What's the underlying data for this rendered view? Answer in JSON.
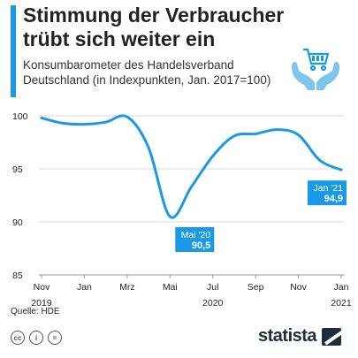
{
  "header": {
    "title": "Stimmung der Verbraucher trübt sich weiter ein",
    "subtitle": "Konsumbarometer des Handelsverband Deutschland (in Indexpunkten, Jan. 2017=100)"
  },
  "footer": {
    "source": "Quelle: HDE",
    "license": [
      "cc",
      "i",
      "="
    ],
    "brand": "statista"
  },
  "colors": {
    "accent": "#1a9ae6",
    "line": "#1a9ae6",
    "callout": "#1a9ae6",
    "grid": "#d8d8d8",
    "brand": "#1f2d3d"
  },
  "chart_data": {
    "type": "line",
    "ylim": [
      85,
      100
    ],
    "yticks": [
      100,
      95,
      90,
      85
    ],
    "x_tick_labels": [
      "Nov",
      "Jan",
      "Mrz",
      "Mai",
      "Jul",
      "Sep",
      "Nov",
      "Jan"
    ],
    "x_year_labels": [
      "2019",
      "2020",
      "2021"
    ],
    "grid": true,
    "series": [
      {
        "x": [
          "2019-11",
          "2019-12",
          "2020-01",
          "2020-02",
          "2020-03",
          "2020-04",
          "2020-05",
          "2020-06",
          "2020-07",
          "2020-08",
          "2020-09",
          "2020-10",
          "2020-11",
          "2020-12",
          "2021-01"
        ],
        "values": [
          99.8,
          99.3,
          99.2,
          99.4,
          99.9,
          97.0,
          90.5,
          93.3,
          96.2,
          98.1,
          98.3,
          98.7,
          98.2,
          95.8,
          94.9
        ]
      }
    ],
    "annotations": [
      {
        "index": 6,
        "month": "Mai '20",
        "value": "90,5"
      },
      {
        "index": 14,
        "month": "Jan '21",
        "value": "94,9"
      }
    ]
  }
}
